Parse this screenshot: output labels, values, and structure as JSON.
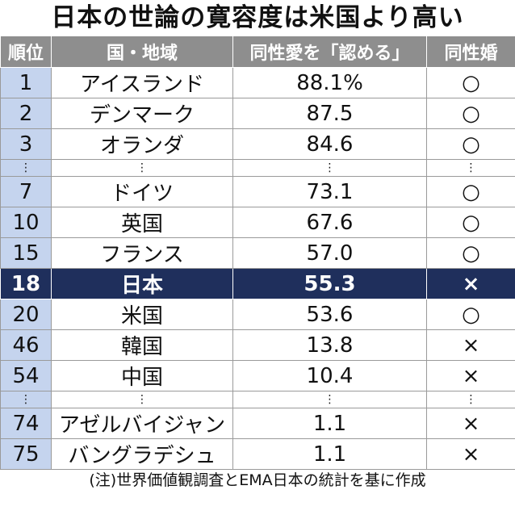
{
  "title": "日本の世論の寛容度は米国より高い",
  "headers": {
    "rank": "順位",
    "country": "国・地域",
    "pct": "同性愛を「認める」",
    "marriage": "同性婚"
  },
  "rows": [
    {
      "rank": "1",
      "country": "アイスランド",
      "pct": "88.1%",
      "marriage": "○"
    },
    {
      "rank": "2",
      "country": "デンマーク",
      "pct": "87.5",
      "marriage": "○"
    },
    {
      "rank": "3",
      "country": "オランダ",
      "pct": "84.6",
      "marriage": "○"
    },
    {
      "rank": "⋮",
      "country": "⋮",
      "pct": "⋮",
      "marriage": "⋮"
    },
    {
      "rank": "7",
      "country": "ドイツ",
      "pct": "73.1",
      "marriage": "○"
    },
    {
      "rank": "10",
      "country": "英国",
      "pct": "67.6",
      "marriage": "○"
    },
    {
      "rank": "15",
      "country": "フランス",
      "pct": "57.0",
      "marriage": "○"
    },
    {
      "rank": "18",
      "country": "日本",
      "pct": "55.3",
      "marriage": "×"
    },
    {
      "rank": "20",
      "country": "米国",
      "pct": "53.6",
      "marriage": "○"
    },
    {
      "rank": "46",
      "country": "韓国",
      "pct": "13.8",
      "marriage": "×"
    },
    {
      "rank": "54",
      "country": "中国",
      "pct": "10.4",
      "marriage": "×"
    },
    {
      "rank": "⋮",
      "country": "⋮",
      "pct": "⋮",
      "marriage": "⋮"
    },
    {
      "rank": "74",
      "country": "アゼルバイジャン",
      "pct": "1.1",
      "marriage": "×"
    },
    {
      "rank": "75",
      "country": "バングラデシュ",
      "pct": "1.1",
      "marriage": "×"
    }
  ],
  "note": "(注)世界価値観調査とEMA日本の統計を基に作成"
}
